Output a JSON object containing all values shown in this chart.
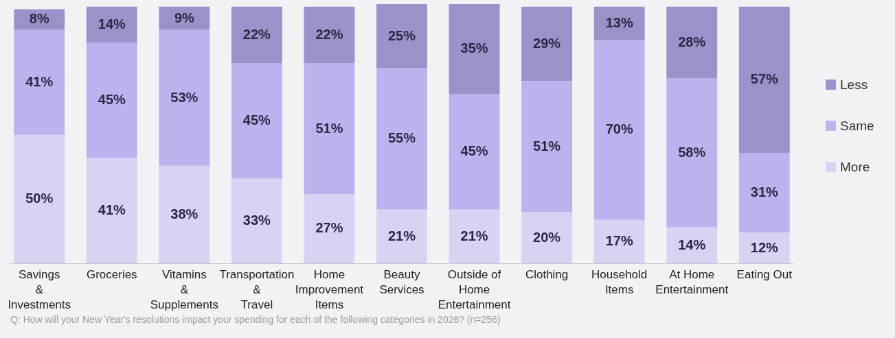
{
  "chart_data": {
    "type": "bar",
    "stacked": true,
    "legend": "right",
    "grid": false,
    "categories": [
      "Savings\n&\nInvestments",
      "Groceries",
      "Vitamins\n&\nSupplements",
      "Transportation\n&\nTravel",
      "Home\nImprovement\nItems",
      "Beauty\nServices",
      "Outside of\nHome\nEntertainment",
      "Clothing",
      "Household\nItems",
      "At Home\nEntertainment",
      "Eating Out"
    ],
    "series": [
      {
        "name": "More",
        "color": "#d9d3f3",
        "values": [
          50,
          41,
          38,
          33,
          27,
          21,
          21,
          20,
          17,
          14,
          12
        ],
        "value_labels": [
          "50%",
          "41%",
          "38%",
          "33%",
          "27%",
          "21%",
          "21%",
          "20%",
          "17%",
          "14%",
          "12%"
        ]
      },
      {
        "name": "Same",
        "color": "#bcb2ed",
        "values": [
          41,
          45,
          53,
          45,
          51,
          55,
          45,
          51,
          70,
          58,
          31
        ],
        "value_labels": [
          "41%",
          "45%",
          "53%",
          "45%",
          "51%",
          "55%",
          "45%",
          "51%",
          "70%",
          "58%",
          "31%"
        ]
      },
      {
        "name": "Less",
        "color": "#9d91ca",
        "values": [
          8,
          14,
          9,
          22,
          22,
          25,
          35,
          29,
          13,
          28,
          57
        ],
        "value_labels": [
          "8%",
          "14%",
          "9%",
          "22%",
          "22%",
          "25%",
          "35%",
          "29%",
          "13%",
          "28%",
          "57%"
        ]
      }
    ],
    "annotations": [
      "Q: How will your New Year's resolutions impact your spending for each of the following categories in 2026? (n=256)"
    ]
  }
}
